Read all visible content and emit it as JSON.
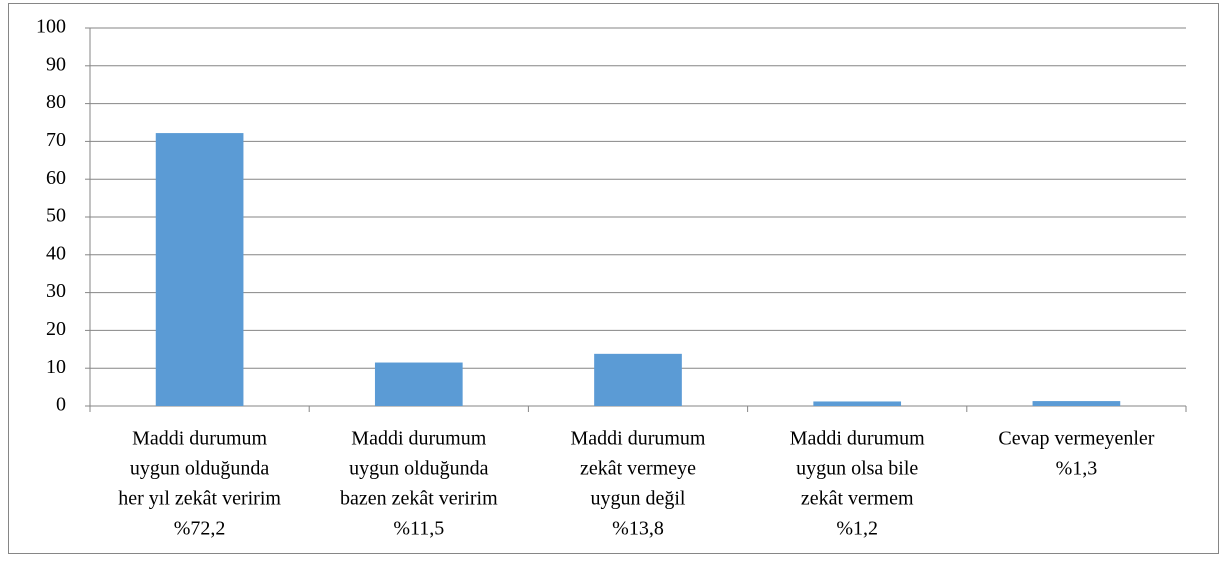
{
  "chart_data": {
    "type": "bar",
    "categories": [
      [
        "Maddi durumum",
        "uygun olduğunda",
        "her yıl zekât veririm",
        "%72,2"
      ],
      [
        "Maddi durumum",
        "uygun olduğunda",
        "bazen zekât veririm",
        "%11,5"
      ],
      [
        "Maddi durumum",
        "zekât vermeye",
        "uygun değil",
        "%13,8"
      ],
      [
        "Maddi durumum",
        "uygun olsa bile",
        "zekât vermem",
        "%1,2"
      ],
      [
        "Cevap vermeyenler",
        "%1,3"
      ]
    ],
    "values": [
      72.2,
      11.5,
      13.8,
      1.2,
      1.3
    ],
    "color": "#5b9bd5",
    "ylim": [
      0,
      100
    ],
    "yticks": [
      0,
      10,
      20,
      30,
      40,
      50,
      60,
      70,
      80,
      90,
      100
    ],
    "grid": true
  }
}
